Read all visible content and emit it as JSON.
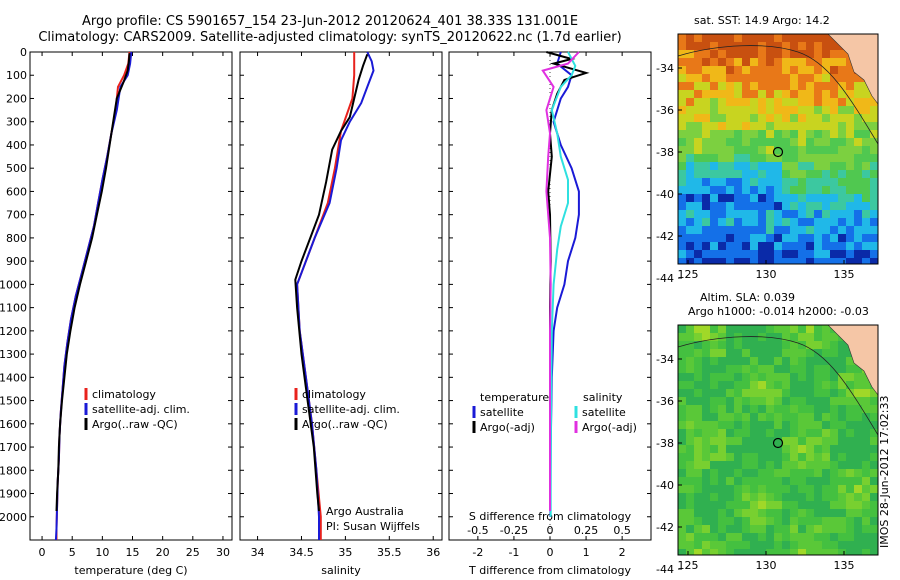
{
  "header": {
    "title_line1": "Argo profile: CS 5901657_154 23-Jun-2012 20120624_401 38.33S 131.001E",
    "title_line2": "Climatology: CARS2009. Satellite-adjusted climatology: synTS_20120622.nc (1.7d earlier)"
  },
  "colors": {
    "climatology": "#e8221d",
    "satellite": "#1a1ad6",
    "argo": "#000000",
    "sat_salinity": "#2fe0e0",
    "argo_salinity": "#e030e0",
    "land": "#f5c6a6"
  },
  "chart_data": [
    {
      "type": "line",
      "name": "temperature-profile",
      "xlabel": "temperature (deg C)",
      "xticks": [
        0,
        5,
        10,
        15,
        20,
        25,
        30
      ],
      "xlim": [
        -2,
        31.5
      ],
      "ylim": [
        2100,
        0
      ],
      "yticks": [
        0,
        100,
        200,
        300,
        400,
        500,
        600,
        700,
        800,
        900,
        1000,
        1100,
        1200,
        1300,
        1400,
        1500,
        1600,
        1700,
        1800,
        1900,
        2000
      ],
      "legend": [
        "climatology",
        "satellite-adj. clim.",
        "Argo(..raw -QC)"
      ],
      "series": [
        {
          "name": "climatology",
          "color": "#e8221d",
          "points": [
            [
              14.5,
              0
            ],
            [
              14.3,
              50
            ],
            [
              13.6,
              100
            ],
            [
              12.6,
              150
            ],
            [
              12.2,
              250
            ],
            [
              11.5,
              350
            ],
            [
              10.8,
              450
            ],
            [
              10.0,
              550
            ],
            [
              9.3,
              650
            ],
            [
              8.6,
              750
            ],
            [
              7.6,
              850
            ],
            [
              6.6,
              950
            ],
            [
              5.6,
              1050
            ],
            [
              4.8,
              1150
            ],
            [
              4.2,
              1250
            ],
            [
              3.7,
              1350
            ],
            [
              3.4,
              1450
            ],
            [
              3.1,
              1550
            ],
            [
              2.9,
              1650
            ],
            [
              2.8,
              1750
            ],
            [
              2.6,
              1850
            ],
            [
              2.5,
              1950
            ],
            [
              2.4,
              2050
            ],
            [
              2.4,
              2100
            ]
          ]
        },
        {
          "name": "satellite-adj. clim.",
          "color": "#1a1ad6",
          "points": [
            [
              14.8,
              0
            ],
            [
              14.6,
              50
            ],
            [
              14.2,
              100
            ],
            [
              13.0,
              150
            ],
            [
              12.4,
              250
            ],
            [
              11.5,
              350
            ],
            [
              10.8,
              450
            ],
            [
              10.0,
              550
            ],
            [
              9.3,
              650
            ],
            [
              8.6,
              750
            ],
            [
              7.6,
              850
            ],
            [
              6.6,
              950
            ],
            [
              5.6,
              1050
            ],
            [
              4.8,
              1150
            ],
            [
              4.2,
              1250
            ],
            [
              3.7,
              1350
            ],
            [
              3.4,
              1450
            ],
            [
              3.1,
              1550
            ],
            [
              2.9,
              1650
            ],
            [
              2.8,
              1750
            ],
            [
              2.6,
              1850
            ],
            [
              2.5,
              1950
            ],
            [
              2.4,
              2050
            ],
            [
              2.3,
              2100
            ]
          ]
        },
        {
          "name": "Argo(..raw -QC)",
          "color": "#000000",
          "points": [
            [
              14.5,
              5
            ],
            [
              14.4,
              40
            ],
            [
              14.2,
              80
            ],
            [
              13.5,
              130
            ],
            [
              12.4,
              200
            ],
            [
              11.8,
              300
            ],
            [
              11.2,
              400
            ],
            [
              10.6,
              500
            ],
            [
              9.9,
              600
            ],
            [
              9.1,
              700
            ],
            [
              8.3,
              800
            ],
            [
              7.3,
              900
            ],
            [
              6.3,
              1000
            ],
            [
              5.4,
              1100
            ],
            [
              4.7,
              1200
            ],
            [
              4.1,
              1300
            ],
            [
              3.7,
              1400
            ],
            [
              3.3,
              1500
            ],
            [
              3.0,
              1600
            ],
            [
              2.8,
              1700
            ],
            [
              2.7,
              1800
            ],
            [
              2.5,
              1900
            ],
            [
              2.4,
              1975
            ]
          ]
        }
      ]
    },
    {
      "type": "line",
      "name": "salinity-profile",
      "xlabel": "salinity",
      "xticks": [
        34,
        34.5,
        35,
        35.5,
        36
      ],
      "xtick_labels": [
        "34",
        "34.5",
        "35",
        "35.5",
        "36"
      ],
      "xlim": [
        33.8,
        36.1
      ],
      "ylim": [
        2100,
        0
      ],
      "legend": [
        "climatology",
        "satellite-adj. clim.",
        "Argo(..raw -QC)"
      ],
      "annotation_line1": "Argo Australia",
      "annotation_line2": "PI: Susan Wijffels",
      "series": [
        {
          "name": "climatology",
          "color": "#e8221d",
          "points": [
            [
              35.1,
              0
            ],
            [
              35.1,
              100
            ],
            [
              35.08,
              200
            ],
            [
              34.95,
              340
            ],
            [
              34.88,
              500
            ],
            [
              34.8,
              650
            ],
            [
              34.65,
              800
            ],
            [
              34.5,
              950
            ],
            [
              34.45,
              1000
            ],
            [
              34.48,
              1200
            ],
            [
              34.55,
              1400
            ],
            [
              34.62,
              1600
            ],
            [
              34.67,
              1800
            ],
            [
              34.72,
              2000
            ],
            [
              34.72,
              2100
            ]
          ]
        },
        {
          "name": "satellite-adj. clim.",
          "color": "#1a1ad6",
          "points": [
            [
              35.25,
              0
            ],
            [
              35.3,
              40
            ],
            [
              35.32,
              80
            ],
            [
              35.25,
              150
            ],
            [
              35.18,
              220
            ],
            [
              35.05,
              300
            ],
            [
              34.95,
              380
            ],
            [
              34.9,
              500
            ],
            [
              34.82,
              650
            ],
            [
              34.65,
              800
            ],
            [
              34.5,
              950
            ],
            [
              34.45,
              1000
            ],
            [
              34.48,
              1200
            ],
            [
              34.55,
              1400
            ],
            [
              34.62,
              1600
            ],
            [
              34.67,
              1800
            ],
            [
              34.7,
              2000
            ],
            [
              34.7,
              2100
            ]
          ]
        },
        {
          "name": "Argo(..raw -QC)",
          "color": "#000000",
          "points": [
            [
              35.25,
              10
            ],
            [
              35.2,
              60
            ],
            [
              35.15,
              120
            ],
            [
              35.1,
              200
            ],
            [
              35.05,
              280
            ],
            [
              34.95,
              340
            ],
            [
              34.85,
              420
            ],
            [
              34.78,
              560
            ],
            [
              34.7,
              700
            ],
            [
              34.6,
              800
            ],
            [
              34.5,
              900
            ],
            [
              34.43,
              980
            ],
            [
              34.45,
              1100
            ],
            [
              34.5,
              1300
            ],
            [
              34.57,
              1500
            ],
            [
              34.64,
              1700
            ],
            [
              34.68,
              1900
            ],
            [
              34.7,
              1975
            ]
          ]
        }
      ]
    },
    {
      "type": "line",
      "name": "difference-profile",
      "xlabel": "T difference from climatology",
      "xlabel_top": "S difference from climatology",
      "xticks": [
        -2,
        -1,
        0,
        1,
        2
      ],
      "xtick_labels": [
        "-2",
        "-1",
        "0",
        "1",
        "2"
      ],
      "xticks_top": [
        -0.5,
        -0.25,
        0,
        0.25,
        0.5
      ],
      "xtick_top_labels": [
        "-0.5",
        "-0.25",
        "0",
        "0.25",
        "0.5"
      ],
      "xlim": [
        -2.8,
        2.8
      ],
      "ylim": [
        2100,
        0
      ],
      "legend_temperature_heading": "temperature",
      "legend_salinity_heading": "salinity",
      "legend_temperature": [
        "satellite",
        "Argo(-adj)"
      ],
      "legend_salinity": [
        "satellite",
        "Argo(-adj)"
      ],
      "series": [
        {
          "name": "T satellite",
          "color": "#1a1ad6",
          "points": [
            [
              0.3,
              0
            ],
            [
              0.2,
              50
            ],
            [
              0.6,
              100
            ],
            [
              0.5,
              150
            ],
            [
              0.3,
              200
            ],
            [
              0.1,
              300
            ],
            [
              0.3,
              400
            ],
            [
              0.6,
              500
            ],
            [
              0.8,
              600
            ],
            [
              0.8,
              700
            ],
            [
              0.7,
              800
            ],
            [
              0.5,
              900
            ],
            [
              0.4,
              1000
            ],
            [
              0.2,
              1100
            ],
            [
              0.1,
              1200
            ],
            [
              0.05,
              1400
            ],
            [
              0.02,
              1700
            ],
            [
              0.01,
              2000
            ]
          ]
        },
        {
          "name": "T Argo(-adj)",
          "color": "#000000",
          "points": [
            [
              -0.1,
              0
            ],
            [
              0.6,
              30
            ],
            [
              0.1,
              50
            ],
            [
              1.0,
              90
            ],
            [
              0.4,
              120
            ],
            [
              0.2,
              180
            ],
            [
              0.05,
              250
            ],
            [
              0.0,
              350
            ],
            [
              0.05,
              450
            ],
            [
              -0.05,
              600
            ],
            [
              0.0,
              700
            ],
            [
              0.02,
              900
            ],
            [
              0.0,
              1100
            ],
            [
              0.0,
              1400
            ],
            [
              0.0,
              1700
            ],
            [
              0.0,
              1975
            ]
          ]
        },
        {
          "name": "S satellite",
          "color": "#2fe0e0",
          "points": [
            [
              0.5,
              0
            ],
            [
              0.7,
              60
            ],
            [
              0.6,
              100
            ],
            [
              0.3,
              150
            ],
            [
              0.05,
              250
            ],
            [
              0.2,
              350
            ],
            [
              0.3,
              450
            ],
            [
              0.5,
              550
            ],
            [
              0.5,
              650
            ],
            [
              0.3,
              750
            ],
            [
              0.2,
              850
            ],
            [
              0.1,
              1000
            ],
            [
              0.05,
              1200
            ],
            [
              0.03,
              1500
            ],
            [
              0.02,
              1800
            ],
            [
              0.02,
              2000
            ]
          ]
        },
        {
          "name": "S Argo(-adj)",
          "color": "#e030e0",
          "points": [
            [
              0.8,
              0
            ],
            [
              0.5,
              50
            ],
            [
              -0.2,
              80
            ],
            [
              0.1,
              150
            ],
            [
              -0.1,
              250
            ],
            [
              0.0,
              350
            ],
            [
              -0.05,
              450
            ],
            [
              -0.1,
              600
            ],
            [
              -0.05,
              700
            ],
            [
              0.0,
              800
            ],
            [
              0.02,
              1000
            ],
            [
              0.0,
              1200
            ],
            [
              0.0,
              1400
            ],
            [
              0.0,
              1600
            ],
            [
              0.0,
              1975
            ]
          ]
        }
      ]
    }
  ],
  "maps": [
    {
      "name": "sst-map",
      "title": "sat. SST: 14.9 Argo: 14.2",
      "yticks": [
        "-34",
        "-36",
        "-38",
        "-40",
        "-42",
        "-44"
      ],
      "xticks": [
        "125",
        "130",
        "135"
      ],
      "palette": [
        "#0a2aa8",
        "#1470e8",
        "#20b8e8",
        "#3cc8a0",
        "#50c850",
        "#7cd040",
        "#c8d420",
        "#f0b818",
        "#e87818",
        "#c85010"
      ]
    },
    {
      "name": "sla-map",
      "title_line1": "Altim. SLA: 0.039",
      "title_line2": "Argo h1000: -0.014 h2000: -0.03",
      "yticks": [
        "-34",
        "-36",
        "-38",
        "-40",
        "-42",
        "-44"
      ],
      "xticks": [
        "125",
        "130",
        "135"
      ],
      "palette": [
        "#30b050",
        "#44c040",
        "#5ac838",
        "#78d030",
        "#a0d828",
        "#c8e030"
      ]
    }
  ],
  "watermark": "IMOS 28-Jun-2012 17:02:33"
}
